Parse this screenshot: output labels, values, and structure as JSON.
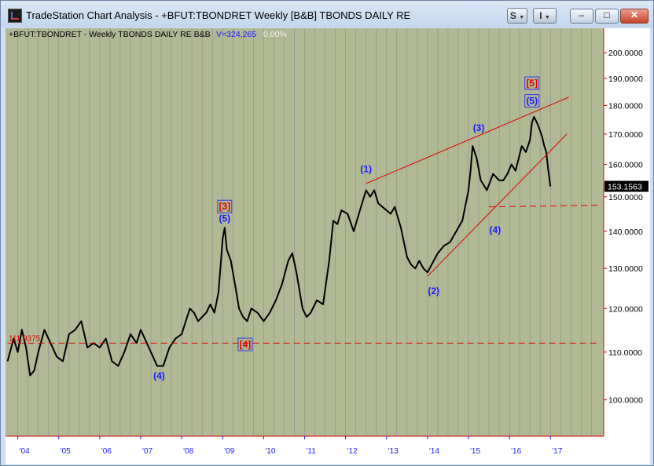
{
  "window": {
    "title": "TradeStation Chart Analysis - +BFUT:TBONDRET Weekly [B&B] TBONDS DAILY RE",
    "s_button": "S",
    "i_button": "I",
    "minimize": "–",
    "maximize": "□",
    "close": "✕"
  },
  "header": {
    "symbol_text": "+BFUT:TBONDRET - Weekly  TBONDS DAILY RE  B&B",
    "volume_text": "V=324,265",
    "change_text": "0.00%"
  },
  "colors": {
    "plot_bg": "#b0b994",
    "grid": "#8f8f8f",
    "axis_line": "#e00000",
    "wave_blue": "#1a1aff",
    "wave_red": "#e00000",
    "price": "#000000",
    "last_price_bg": "#000000"
  },
  "chart_data": {
    "type": "line",
    "title": "+BFUT:TBONDRET - Weekly  TBONDS DAILY RE  B&B",
    "x_ticks": [
      "'04",
      "'05",
      "'06",
      "'07",
      "'08",
      "'09",
      "'10",
      "'11",
      "'12",
      "'13",
      "'14",
      "'15",
      "'16",
      "'17"
    ],
    "y_ticks": [
      "100.0000",
      "110.0000",
      "120.0000",
      "130.0000",
      "140.0000",
      "150.0000",
      "160.0000",
      "170.0000",
      "180.0000",
      "190.0000",
      "200.0000"
    ],
    "xlim": [
      2003.7,
      2018.3
    ],
    "ylim": [
      93,
      210
    ],
    "y_scale": "log",
    "last_price": "153.1563",
    "level_label": "111.9375",
    "series": [
      {
        "values": [
          [
            2003.75,
            108
          ],
          [
            2003.9,
            113
          ],
          [
            2004.0,
            110
          ],
          [
            2004.1,
            115
          ],
          [
            2004.2,
            111
          ],
          [
            2004.3,
            105
          ],
          [
            2004.4,
            106
          ],
          [
            2004.5,
            110
          ],
          [
            2004.65,
            115
          ],
          [
            2004.8,
            112
          ],
          [
            2004.95,
            109
          ],
          [
            2005.1,
            108
          ],
          [
            2005.25,
            114
          ],
          [
            2005.4,
            115
          ],
          [
            2005.55,
            117
          ],
          [
            2005.7,
            111
          ],
          [
            2005.85,
            112
          ],
          [
            2006.0,
            111
          ],
          [
            2006.15,
            113
          ],
          [
            2006.3,
            108
          ],
          [
            2006.45,
            107
          ],
          [
            2006.6,
            110
          ],
          [
            2006.75,
            114
          ],
          [
            2006.9,
            112
          ],
          [
            2007.0,
            115
          ],
          [
            2007.1,
            113
          ],
          [
            2007.25,
            110
          ],
          [
            2007.4,
            107
          ],
          [
            2007.55,
            107
          ],
          [
            2007.7,
            111
          ],
          [
            2007.85,
            113
          ],
          [
            2008.0,
            114
          ],
          [
            2008.1,
            117
          ],
          [
            2008.2,
            120
          ],
          [
            2008.3,
            119
          ],
          [
            2008.4,
            117
          ],
          [
            2008.5,
            118
          ],
          [
            2008.6,
            119
          ],
          [
            2008.7,
            121
          ],
          [
            2008.8,
            119
          ],
          [
            2008.9,
            124
          ],
          [
            2009.0,
            138
          ],
          [
            2009.05,
            141
          ],
          [
            2009.1,
            135
          ],
          [
            2009.2,
            132
          ],
          [
            2009.3,
            126
          ],
          [
            2009.4,
            120
          ],
          [
            2009.5,
            118
          ],
          [
            2009.6,
            117
          ],
          [
            2009.7,
            120
          ],
          [
            2009.85,
            119
          ],
          [
            2010.0,
            117
          ],
          [
            2010.15,
            119
          ],
          [
            2010.3,
            122
          ],
          [
            2010.45,
            126
          ],
          [
            2010.6,
            132
          ],
          [
            2010.7,
            134
          ],
          [
            2010.8,
            129
          ],
          [
            2010.95,
            120
          ],
          [
            2011.05,
            118
          ],
          [
            2011.15,
            119
          ],
          [
            2011.3,
            122
          ],
          [
            2011.45,
            121
          ],
          [
            2011.6,
            132
          ],
          [
            2011.7,
            143
          ],
          [
            2011.8,
            142
          ],
          [
            2011.9,
            146
          ],
          [
            2012.05,
            145
          ],
          [
            2012.2,
            140
          ],
          [
            2012.35,
            146
          ],
          [
            2012.5,
            152
          ],
          [
            2012.6,
            150
          ],
          [
            2012.7,
            152
          ],
          [
            2012.8,
            148
          ],
          [
            2012.9,
            147
          ],
          [
            2013.0,
            146
          ],
          [
            2013.1,
            145
          ],
          [
            2013.2,
            147
          ],
          [
            2013.35,
            141
          ],
          [
            2013.5,
            133
          ],
          [
            2013.6,
            131
          ],
          [
            2013.7,
            130
          ],
          [
            2013.8,
            132
          ],
          [
            2013.9,
            130
          ],
          [
            2014.0,
            129
          ],
          [
            2014.1,
            131
          ],
          [
            2014.25,
            134
          ],
          [
            2014.4,
            136
          ],
          [
            2014.55,
            137
          ],
          [
            2014.7,
            140
          ],
          [
            2014.85,
            143
          ],
          [
            2015.0,
            152
          ],
          [
            2015.05,
            158
          ],
          [
            2015.1,
            166
          ],
          [
            2015.2,
            162
          ],
          [
            2015.3,
            155
          ],
          [
            2015.45,
            152
          ],
          [
            2015.6,
            157
          ],
          [
            2015.75,
            155
          ],
          [
            2015.85,
            155
          ],
          [
            2015.95,
            157
          ],
          [
            2016.05,
            160
          ],
          [
            2016.15,
            158
          ],
          [
            2016.3,
            166
          ],
          [
            2016.4,
            164
          ],
          [
            2016.5,
            168
          ],
          [
            2016.55,
            174
          ],
          [
            2016.6,
            176
          ],
          [
            2016.7,
            173
          ],
          [
            2016.75,
            171
          ],
          [
            2016.8,
            169
          ],
          [
            2016.85,
            166
          ],
          [
            2016.9,
            164
          ],
          [
            2016.95,
            158
          ],
          [
            2017.0,
            153.16
          ]
        ]
      }
    ],
    "trendlines": [
      {
        "color": "#e00000",
        "style": "solid",
        "points": [
          [
            2012.5,
            154
          ],
          [
            2017.45,
            183
          ]
        ]
      },
      {
        "color": "#e00000",
        "style": "solid",
        "points": [
          [
            2014.0,
            128
          ],
          [
            2017.4,
            170
          ]
        ]
      },
      {
        "color": "#e00000",
        "style": "dashed",
        "points": [
          [
            2015.5,
            147
          ],
          [
            2018.2,
            147.5
          ]
        ]
      },
      {
        "color": "#e00000",
        "style": "dashed",
        "points": [
          [
            2003.75,
            112
          ],
          [
            2018.2,
            112
          ]
        ]
      }
    ],
    "annotations": [
      {
        "text": "(4)",
        "x": 2007.45,
        "y": 104.3,
        "color": "#1a1aff"
      },
      {
        "text": "[3]",
        "x": 2009.05,
        "y": 146.2,
        "color": "#e00000",
        "boxed": true
      },
      {
        "text": "(5)",
        "x": 2009.05,
        "y": 142.7,
        "color": "#1a1aff"
      },
      {
        "text": "[4]",
        "x": 2009.55,
        "y": 111.0,
        "color": "#e00000",
        "boxed": true
      },
      {
        "text": "(1)",
        "x": 2012.5,
        "y": 157.5,
        "color": "#1a1aff"
      },
      {
        "text": "(2)",
        "x": 2014.15,
        "y": 123.5,
        "color": "#1a1aff"
      },
      {
        "text": "(3)",
        "x": 2015.25,
        "y": 171.0,
        "color": "#1a1aff"
      },
      {
        "text": "(4)",
        "x": 2015.65,
        "y": 139.5,
        "color": "#1a1aff"
      },
      {
        "text": "[5]",
        "x": 2016.55,
        "y": 187.0,
        "color": "#e00000",
        "boxed": true
      },
      {
        "text": "(5)",
        "x": 2016.55,
        "y": 180.5,
        "color": "#1a1aff",
        "boxed": true
      }
    ]
  }
}
